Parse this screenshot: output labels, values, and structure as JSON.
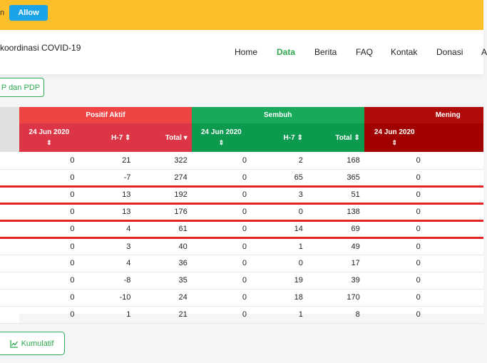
{
  "notification": {
    "fragment": "n",
    "allow_label": "Allow"
  },
  "brand": {
    "text": "koordinasi COVID-19"
  },
  "nav": {
    "items": [
      "Home",
      "Data",
      "Berita",
      "FAQ",
      "Kontak",
      "Donasi",
      "A"
    ],
    "active": "Data"
  },
  "filter_button": {
    "label": "P dan PDP"
  },
  "table": {
    "groups": [
      "Positif Aktif",
      "Sembuh",
      "Mening"
    ],
    "subheaders": {
      "date": "24 Jun 2020",
      "h7": "H-7",
      "total": "Total",
      "sort_icon": "⇕",
      "total_sort_active": "▾"
    },
    "rows": [
      [
        "0",
        "21",
        "322",
        "0",
        "2",
        "168",
        "0"
      ],
      [
        "0",
        "-7",
        "274",
        "0",
        "65",
        "365",
        "0"
      ],
      [
        "0",
        "13",
        "192",
        "0",
        "3",
        "51",
        "0"
      ],
      [
        "0",
        "13",
        "176",
        "0",
        "0",
        "138",
        "0"
      ],
      [
        "0",
        "4",
        "61",
        "0",
        "14",
        "69",
        "0"
      ],
      [
        "0",
        "3",
        "40",
        "0",
        "1",
        "49",
        "0"
      ],
      [
        "0",
        "4",
        "36",
        "0",
        "0",
        "17",
        "0"
      ],
      [
        "0",
        "-8",
        "35",
        "0",
        "19",
        "39",
        "0"
      ],
      [
        "0",
        "-10",
        "24",
        "0",
        "18",
        "170",
        "0"
      ],
      [
        "0",
        "1",
        "21",
        "0",
        "1",
        "8",
        "0"
      ]
    ],
    "highlighted_rows": [
      2,
      4
    ],
    "colors": {
      "positif": "#ef4444",
      "sembuh": "#18a95a",
      "meninggal": "#b00b0b",
      "highlight": "#e02424"
    }
  },
  "kumulatif_button": {
    "label": "Kumulatif",
    "icon": "line-chart-icon"
  }
}
